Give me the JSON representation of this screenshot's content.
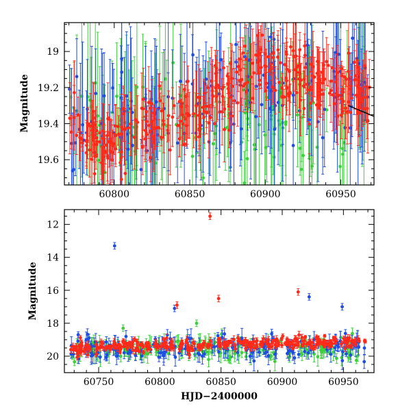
{
  "colors": {
    "blue": "#1f4fe0",
    "green": "#3ed13e",
    "red": "#ff2a1a",
    "black": "#000000"
  },
  "chart_data": [
    {
      "type": "scatter",
      "title": "",
      "xlabel": "",
      "ylabel": "Magnitude",
      "xlim": [
        60767,
        60972
      ],
      "ylim": [
        19.74,
        18.84
      ],
      "y_inverted": true,
      "xticks": [
        60800,
        60850,
        60900,
        60950
      ],
      "xtick_labels": [
        "60800",
        "60850",
        "60900",
        "60950"
      ],
      "yticks": [
        19.0,
        19.2,
        19.4,
        19.6
      ],
      "ytick_labels": [
        "19",
        "19.2",
        "19.4",
        "19.6"
      ],
      "grid": false,
      "legend": "none",
      "series": [
        {
          "color": "blue",
          "trend": "noisy, median ~19.35 rising to ~19.2 after 60850",
          "typical_error": 0.25
        },
        {
          "color": "green",
          "trend": "noisy, median ~19.4",
          "typical_error": 0.25
        },
        {
          "color": "red",
          "trend": "dense, ~19.5 at 60780, ~19.35 at 60850, ~19.05 at 60895, ~19.2 at 60950",
          "typical_error": 0.1
        }
      ],
      "model_curve": {
        "color": "black",
        "x": [
          60955,
          60972
        ],
        "y": [
          19.3,
          19.36
        ]
      }
    },
    {
      "type": "scatter",
      "title": "",
      "xlabel": "HJD−2400000",
      "ylabel": "Magnitude",
      "xlim": [
        60722,
        60975
      ],
      "ylim": [
        21.0,
        11.1
      ],
      "y_inverted": true,
      "xticks": [
        60750,
        60800,
        60850,
        60900,
        60950
      ],
      "xtick_labels": [
        "60750",
        "60800",
        "60850",
        "60900",
        "60950"
      ],
      "yticks": [
        12,
        14,
        16,
        18,
        20
      ],
      "ytick_labels": [
        "12",
        "14",
        "16",
        "18",
        "20"
      ],
      "grid": false,
      "legend": "none",
      "series": [
        {
          "color": "blue",
          "baseline": "~19.5 with scatter 0.4",
          "outliers": [
            [
              60763,
              13.3
            ],
            [
              60812,
              17.1
            ],
            [
              60922,
              16.4
            ],
            [
              60949,
              17.0
            ]
          ]
        },
        {
          "color": "green",
          "baseline": "~19.6 with scatter 0.4",
          "outliers": [
            [
              60830,
              18.0
            ],
            [
              60770,
              18.3
            ]
          ]
        },
        {
          "color": "red",
          "baseline": "~19.5 at 60730 rising to ~19.2 at 60900",
          "outliers": [
            [
              60841,
              11.5
            ],
            [
              60814,
              16.9
            ],
            [
              60848,
              16.5
            ],
            [
              60913,
              16.1
            ]
          ]
        }
      ]
    }
  ]
}
